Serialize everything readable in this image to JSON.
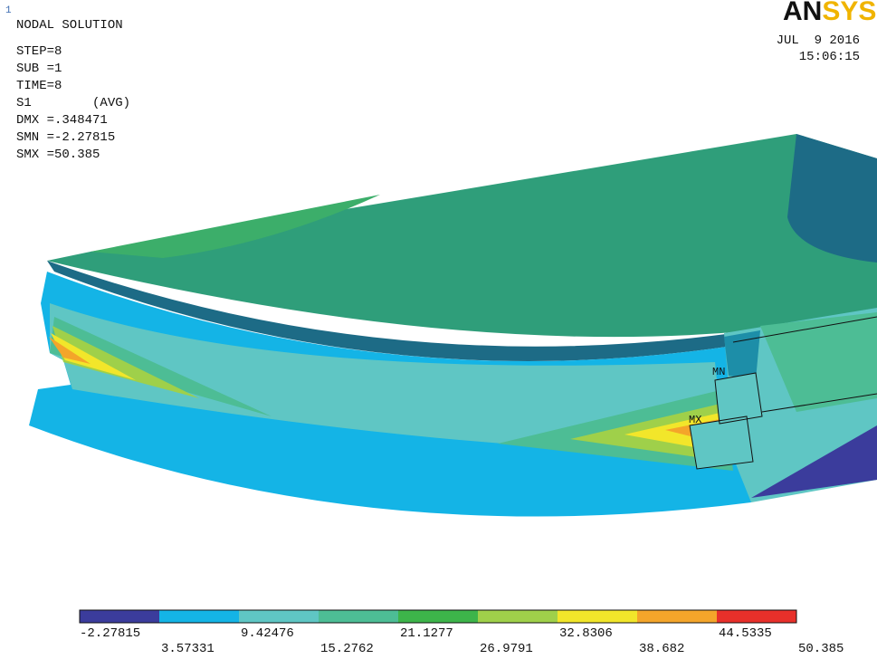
{
  "header": {
    "marker": "1",
    "title": "NODAL SOLUTION",
    "info": [
      "STEP=8",
      "SUB =1",
      "TIME=8",
      "S1        (AVG)",
      "DMX =.348471",
      "SMN =-2.27815",
      "SMX =50.385"
    ],
    "logo": "ANSYS",
    "date": "JUL  9 2016",
    "time": "15:06:15"
  },
  "plot": {
    "labels": [
      "MN",
      "MX"
    ]
  },
  "legend": {
    "colors": [
      "#3b3c9c",
      "#14b4e6",
      "#5fc6c4",
      "#4dbd95",
      "#3db44a",
      "#9fd04a",
      "#f2e62a",
      "#f4a52a",
      "#e8302a"
    ],
    "labels": [
      "-2.27815",
      "3.57331",
      "9.42476",
      "15.2762",
      "21.1277",
      "26.9791",
      "32.8306",
      "38.682",
      "44.5335",
      "50.385"
    ]
  }
}
